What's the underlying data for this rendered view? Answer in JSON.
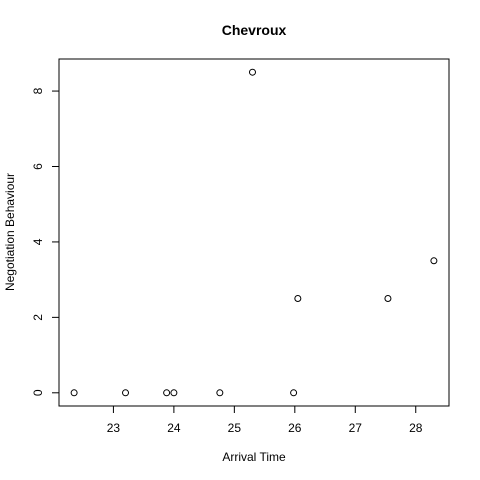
{
  "chart_data": {
    "type": "scatter",
    "title": "Chevroux",
    "xlabel": "Arrival Time",
    "ylabel": "Negotiation Behaviour",
    "xlim": [
      22.1,
      28.55
    ],
    "ylim": [
      -0.35,
      8.85
    ],
    "x_ticks": [
      23,
      24,
      25,
      26,
      27,
      28
    ],
    "y_ticks": [
      0,
      2,
      4,
      6,
      8
    ],
    "points": [
      {
        "x": 22.35,
        "y": 0
      },
      {
        "x": 23.2,
        "y": 0
      },
      {
        "x": 23.88,
        "y": 0
      },
      {
        "x": 24.0,
        "y": 0
      },
      {
        "x": 24.76,
        "y": 0
      },
      {
        "x": 25.3,
        "y": 8.5
      },
      {
        "x": 25.98,
        "y": 0
      },
      {
        "x": 26.05,
        "y": 2.5
      },
      {
        "x": 27.54,
        "y": 2.5
      },
      {
        "x": 28.3,
        "y": 3.5
      }
    ],
    "marker": "open-circle",
    "grid": false,
    "legend": "none",
    "colors": {
      "marker": "#000000",
      "axes": "#000000",
      "background": "#ffffff"
    }
  }
}
